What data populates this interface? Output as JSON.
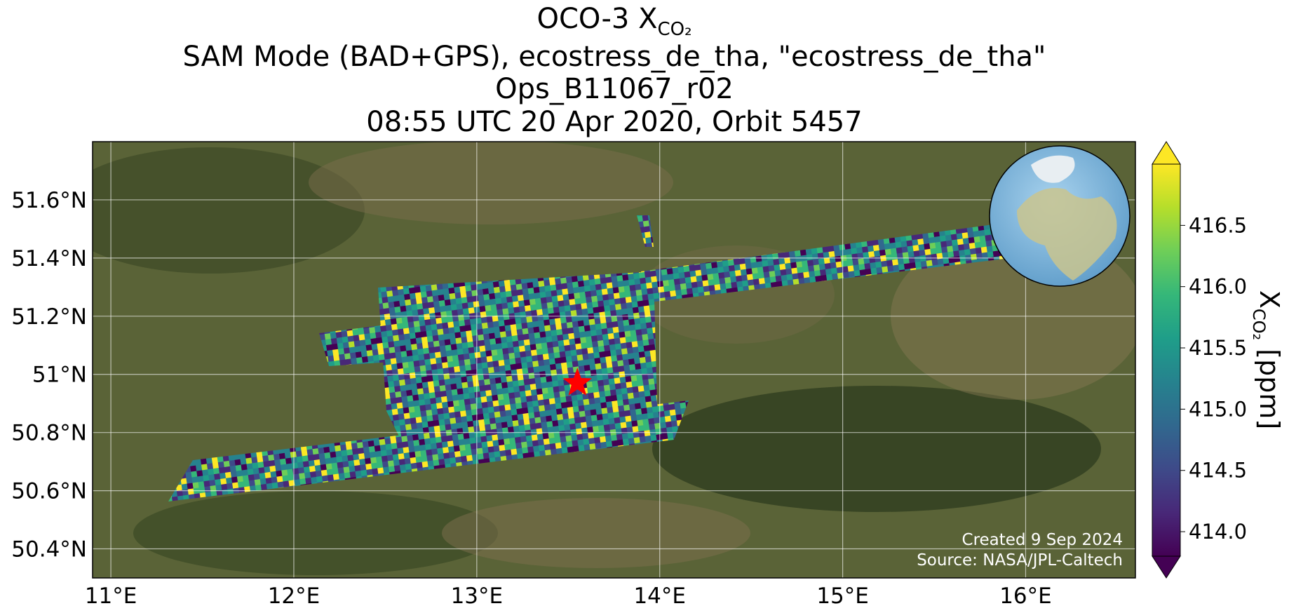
{
  "chart_data": {
    "type": "map",
    "title": {
      "line1": "OCO-3 X",
      "line1_subscript": "CO₂",
      "line2": "SAM Mode (BAD+GPS), ecostress_de_tha, \"ecostress_de_tha\"",
      "line3": "Ops_B11067_r02",
      "line4": "08:55 UTC 20 Apr 2020, Orbit 5457"
    },
    "xlim": [
      10.9,
      16.6
    ],
    "ylim": [
      50.3,
      51.8
    ],
    "xticks": [
      {
        "value": 11,
        "label": "11°E"
      },
      {
        "value": 12,
        "label": "12°E"
      },
      {
        "value": 13,
        "label": "13°E"
      },
      {
        "value": 14,
        "label": "14°E"
      },
      {
        "value": 15,
        "label": "15°E"
      },
      {
        "value": 16,
        "label": "16°E"
      }
    ],
    "yticks": [
      {
        "value": 50.4,
        "label": "50.4°N"
      },
      {
        "value": 50.6,
        "label": "50.6°N"
      },
      {
        "value": 50.8,
        "label": "50.8°N"
      },
      {
        "value": 51,
        "label": "51°N"
      },
      {
        "value": 51.2,
        "label": "51.2°N"
      },
      {
        "value": 51.4,
        "label": "51.4°N"
      },
      {
        "value": 51.6,
        "label": "51.6°N"
      }
    ],
    "grid": true,
    "target": {
      "lon": 13.55,
      "lat": 50.97,
      "color": "#ff0000"
    },
    "colorbar": {
      "colormap": "viridis",
      "lim": [
        413.8,
        417.0
      ],
      "ticks": [
        {
          "value": 414,
          "label": "414.0"
        },
        414.5,
        {
          "value": 415,
          "label": "415.0"
        },
        415.5,
        {
          "value": 416,
          "label": "416.0"
        },
        416.5
      ],
      "label": "X",
      "label_subscript": "CO₂",
      "label_unit": " [ppm]"
    },
    "credits": [
      "Created 9 Sep 2024",
      "Source: NASA/JPL-Caltech"
    ]
  }
}
